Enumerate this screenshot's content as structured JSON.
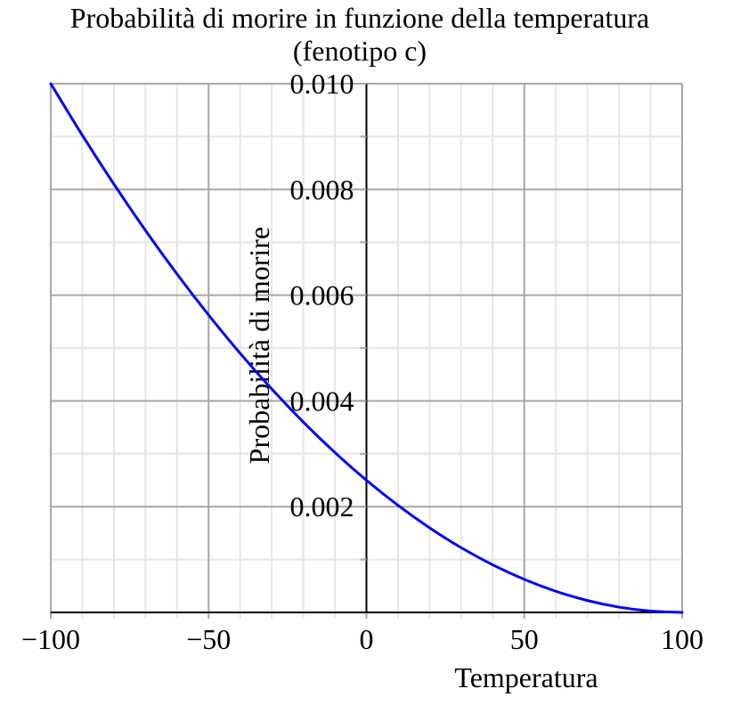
{
  "chart_data": {
    "type": "line",
    "title": "Probabilità di morire in funzione della temperatura",
    "subtitle": "(fenotipo c)",
    "xlabel": "Temperatura",
    "ylabel": "Probabilità di morire",
    "xlim": [
      -100,
      100
    ],
    "ylim": [
      0,
      0.01
    ],
    "x_ticks": [
      -100,
      -50,
      0,
      50,
      100
    ],
    "x_tick_labels": [
      "−100",
      "−50",
      "0",
      "50",
      "100"
    ],
    "x_minor_step": 10,
    "y_ticks": [
      0.002,
      0.004,
      0.006,
      0.008,
      0.01
    ],
    "y_tick_labels": [
      "0.002",
      "0.004",
      "0.006",
      "0.008",
      "0.010"
    ],
    "y_minor_step": 0.001,
    "grid": true,
    "legend": null,
    "series": [
      {
        "name": "fenotipo c",
        "color": "#0000ee",
        "x": [
          -100,
          -90,
          -80,
          -70,
          -60,
          -50,
          -40,
          -30,
          -20,
          -10,
          0,
          10,
          20,
          30,
          40,
          50,
          60,
          70,
          80,
          90,
          100
        ],
        "values": [
          0.01,
          0.009025,
          0.0081,
          0.007225,
          0.0064,
          0.005625,
          0.0049,
          0.004225,
          0.0036,
          0.003025,
          0.0025,
          0.002025,
          0.0016,
          0.001225,
          0.0009,
          0.000625,
          0.0004,
          0.000225,
          0.0001,
          2.5e-05,
          0.0
        ]
      }
    ]
  },
  "colors": {
    "major_grid": "#a6a6a6",
    "minor_grid": "#e6e6e6",
    "axis": "#000000",
    "curve": "#0000ee"
  }
}
